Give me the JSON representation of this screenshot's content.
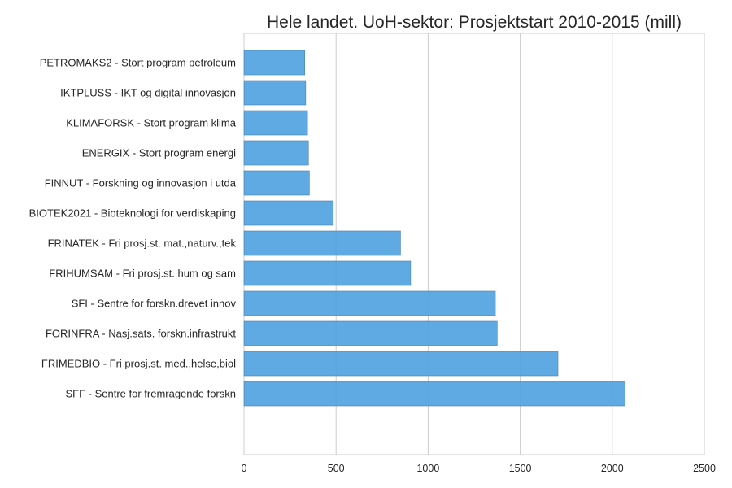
{
  "chart_data": {
    "type": "bar",
    "orientation": "horizontal",
    "title": "Hele landet. UoH-sektor: Prosjektstart 2010-2015 (mill)",
    "xlabel": "",
    "ylabel": "",
    "xlim": [
      0,
      2500
    ],
    "x_ticks": [
      0,
      500,
      1000,
      1500,
      2000,
      2500
    ],
    "grid": true,
    "categories": [
      "PETROMAKS2 - Stort program petroleum",
      "IKTPLUSS - IKT og digital innovasjon",
      "KLIMAFORSK - Stort program klima",
      "ENERGIX - Stort program energi",
      "FINNUT - Forskning og innovasjon i utda",
      "BIOTEK2021 - Bioteknologi for verdiskaping",
      "FRINATEK - Fri prosj.st. mat.,naturv.,tek",
      "FRIHUMSAM - Fri prosj.st. hum og sam",
      "SFI - Sentre for forskn.drevet innov",
      "FORINFRA - Nasj.sats. forskn.infrastrukt",
      "FRIMEDBIO - Fri prosj.st. med.,helse,biol",
      "SFF - Sentre for fremragende forskn"
    ],
    "values": [
      330,
      335,
      345,
      350,
      355,
      485,
      850,
      905,
      1365,
      1375,
      1705,
      2070
    ],
    "bar_color": "#4ea1e0"
  }
}
